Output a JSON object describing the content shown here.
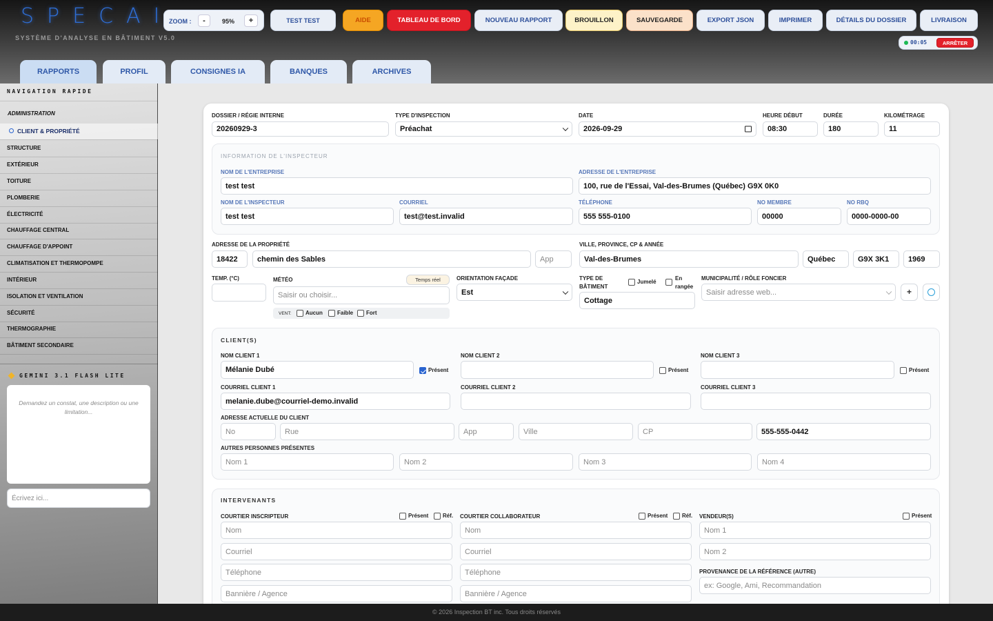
{
  "header": {
    "logo": "SPECAI",
    "subtitle": "SYSTÈME D'ANALYSE EN BÂTIMENT V5.0",
    "zoom_label": "ZOOM :",
    "zoom_minus": "-",
    "zoom_value": "95%",
    "zoom_plus": "+",
    "user": "TEST TEST",
    "buttons": [
      "AIDE",
      "TABLEAU DE BORD",
      "NOUVEAU RAPPORT",
      "BROUILLON",
      "SAUVEGARDE",
      "EXPORT JSON",
      "IMPRIMER",
      "DÉTAILS DU DOSSIER",
      "LIVRAISON"
    ],
    "timer": "00:05",
    "stop": "ARRÊTER"
  },
  "tabs": [
    "RAPPORTS",
    "PROFIL",
    "CONSIGNES IA",
    "BANQUES",
    "ARCHIVES"
  ],
  "sidebar": {
    "title": "NAVIGATION RAPIDE",
    "section": "ADMINISTRATION",
    "items": [
      "CLIENT & PROPRIÉTÉ",
      "STRUCTURE",
      "EXTÉRIEUR",
      "TOITURE",
      "PLOMBERIE",
      "ÉLECTRICITÉ",
      "CHAUFFAGE CENTRAL",
      "CHAUFFAGE D'APPOINT",
      "CLIMATISATION ET THERMOPOMPE",
      "INTÉRIEUR",
      "ISOLATION ET VENTILATION",
      "SÉCURITÉ",
      "THERMOGRAPHIE",
      "BÂTIMENT SECONDAIRE"
    ],
    "ai_title": "GEMINI 3.1 FLASH LITE",
    "ai_prompt": "Demandez un constat, une description ou une limitation...",
    "ai_input": "Écrivez ici..."
  },
  "form": {
    "top": [
      {
        "label": "DOSSIER / RÉGIE INTERNE",
        "value": "20260929-3"
      },
      {
        "label": "TYPE D'INSPECTION",
        "value": "Préachat"
      },
      {
        "label": "DATE",
        "value": "2026-09-29"
      },
      {
        "label": "HEURE DÉBUT",
        "value": "08:30"
      },
      {
        "label": "DURÉE",
        "value": "180"
      },
      {
        "label": "KILOMÉTRAGE",
        "value": "11"
      }
    ],
    "inspector": {
      "title": "INFORMATION DE L'INSPECTEUR",
      "fields": [
        {
          "label": "NOM DE L'ENTREPRISE",
          "value": "test test"
        },
        {
          "label": "ADRESSE DE L'ENTREPRISE",
          "value": "100, rue de l'Essai, Val-des-Brumes (Québec)  G9X 0K0"
        },
        {
          "label": "NOM DE L'INSPECTEUR",
          "value": "test test"
        },
        {
          "label": "COURRIEL",
          "value": "test@test.invalid"
        },
        {
          "label": "TÉLÉPHONE",
          "value": "555 555-0100"
        },
        {
          "label": "NO MEMBRE",
          "value": "00000"
        },
        {
          "label": "NO RBQ",
          "value": "0000-0000-00"
        }
      ]
    },
    "property": {
      "address_label": "ADRESSE DE LA PROPRIÉTÉ",
      "number": "18422",
      "street": "chemin des Sables",
      "apt_placeholder": "App",
      "city_label": "VILLE, PROVINCE, CP & ANNÉE",
      "city": "Val-des-Brumes",
      "province": "Québec",
      "postal": "G9X 3K1",
      "year": "1969",
      "temp_label": "TEMP. (°C)",
      "weather_label": "MÉTÉO",
      "weather_button": "Temps réel",
      "weather_placeholder": "Saisir ou choisir...",
      "wind_label": "VENT:",
      "wind_options": [
        "Aucun",
        "Faible",
        "Fort"
      ],
      "orientation_label": "ORIENTATION FAÇADE",
      "orientation": "Est",
      "building_label": "TYPE DE BÂTIMENT",
      "building_options": [
        "Jumelé",
        "En rangée"
      ],
      "building": "Cottage",
      "municipality_label": "MUNICIPALITÉ / RÔLE FONCIER",
      "municipality_placeholder": "Saisir adresse web...",
      "add": "+"
    },
    "clients": {
      "title": "CLIENT(S)",
      "present_label": "Présent",
      "names": [
        {
          "label": "NOM CLIENT 1",
          "value": "Mélanie Dubé",
          "present": true
        },
        {
          "label": "NOM CLIENT 2",
          "present": false
        },
        {
          "label": "NOM CLIENT 3",
          "present": false
        }
      ],
      "emails": [
        {
          "label": "COURRIEL CLIENT 1",
          "value": "melanie.dube@courriel-demo.invalid"
        },
        {
          "label": "COURRIEL CLIENT 2"
        },
        {
          "label": "COURRIEL CLIENT 3"
        }
      ],
      "address_label": "ADRESSE ACTUELLE DU CLIENT",
      "address_placeholders": [
        "No",
        "Rue",
        "App",
        "Ville",
        "CP"
      ],
      "phone": "555-555-0442",
      "others_label": "AUTRES PERSONNES PRÉSENTES",
      "others_placeholders": [
        "Nom 1",
        "Nom 2",
        "Nom 3",
        "Nom 4"
      ]
    },
    "stakeholders": {
      "title": "INTERVENANTS",
      "present_label": "Présent",
      "ref_label": "Réf.",
      "listing_broker": {
        "label": "COURTIER INSCRIPTEUR",
        "placeholders": [
          "Nom",
          "Courriel",
          "Téléphone",
          "Bannière / Agence"
        ]
      },
      "selling_broker": {
        "label": "COURTIER COLLABORATEUR",
        "placeholders": [
          "Nom",
          "Courriel",
          "Téléphone",
          "Bannière / Agence"
        ]
      },
      "sellers": {
        "label": "VENDEUR(S)",
        "placeholders": [
          "Nom 1",
          "Nom 2"
        ]
      },
      "referral_label": "PROVENANCE DE LA RÉFÉRENCE (AUTRE)",
      "referral_placeholder": "ex: Google, Ami, Recommandation"
    }
  },
  "footer": "© 2026 Inspection BT inc. Tous droits réservés"
}
